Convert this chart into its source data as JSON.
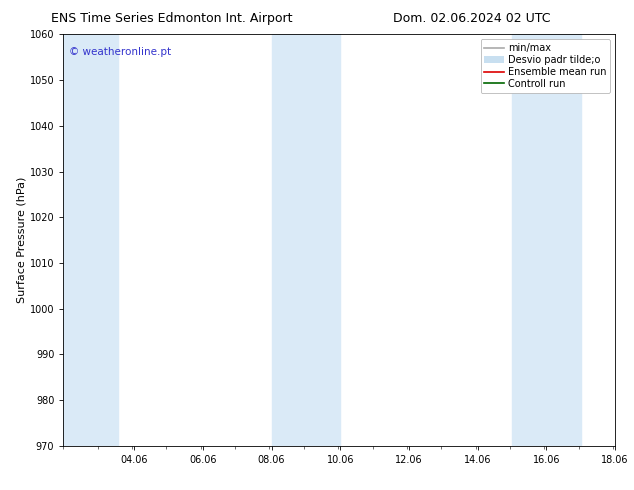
{
  "title_left": "ENS Time Series Edmonton Int. Airport",
  "title_right": "Dom. 02.06.2024 02 UTC",
  "ylabel": "Surface Pressure (hPa)",
  "xlim": [
    2.0,
    18.06
  ],
  "ylim": [
    970,
    1060
  ],
  "yticks": [
    970,
    980,
    990,
    1000,
    1010,
    1020,
    1030,
    1040,
    1050,
    1060
  ],
  "xtick_labels": [
    "04.06",
    "06.06",
    "08.06",
    "10.06",
    "12.06",
    "14.06",
    "16.06",
    "18.06"
  ],
  "xtick_positions": [
    4.06,
    6.06,
    8.06,
    10.06,
    12.06,
    14.06,
    16.06,
    18.06
  ],
  "bg_color": "#ffffff",
  "plot_bg_color": "#ffffff",
  "shaded_bands": [
    {
      "xmin": 2.0,
      "xmax": 3.6
    },
    {
      "xmin": 8.06,
      "xmax": 10.06
    },
    {
      "xmin": 15.06,
      "xmax": 17.06
    }
  ],
  "shade_color": "#daeaf7",
  "watermark_text": "© weatheronline.pt",
  "watermark_color": "#3333cc",
  "legend_items": [
    {
      "label": "min/max",
      "color": "#aaaaaa",
      "lw": 1.2,
      "ls": "-",
      "type": "line"
    },
    {
      "label": "Desvio padr tilde;o",
      "color": "#c8dff0",
      "lw": 8,
      "ls": "-",
      "type": "band"
    },
    {
      "label": "Ensemble mean run",
      "color": "#dd0000",
      "lw": 1.2,
      "ls": "-",
      "type": "line"
    },
    {
      "label": "Controll run",
      "color": "#006600",
      "lw": 1.2,
      "ls": "-",
      "type": "line"
    }
  ],
  "title_fontsize": 9,
  "tick_fontsize": 7,
  "ylabel_fontsize": 8,
  "watermark_fontsize": 7.5,
  "legend_fontsize": 7
}
